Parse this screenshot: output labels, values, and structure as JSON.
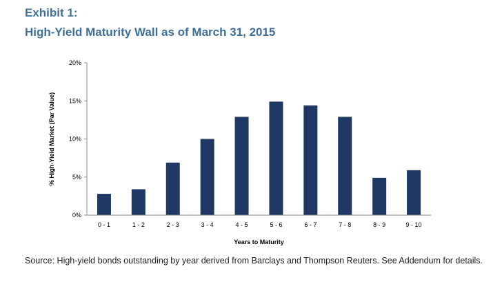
{
  "exhibit_label": "Exhibit 1:",
  "title": "High-Yield Maturity Wall as of March 31, 2015",
  "source_note": "Source: High-yield bonds outstanding by year derived from Barclays and Thompson Reuters. See Addendum for details.",
  "colors": {
    "bar": "#1f3864",
    "title": "#3f6f98"
  },
  "chart_data": {
    "type": "bar",
    "categories": [
      "0 - 1",
      "1 - 2",
      "2 - 3",
      "3 - 4",
      "4 - 5",
      "5 - 6",
      "6 - 7",
      "7 - 8",
      "8 - 9",
      "9 - 10"
    ],
    "values": [
      2.8,
      3.4,
      6.9,
      10.0,
      12.9,
      14.9,
      14.4,
      12.9,
      4.9,
      5.9
    ],
    "ylim": [
      0,
      20
    ],
    "yticks": [
      "0%",
      "5%",
      "10%",
      "15%",
      "20%"
    ],
    "ytick_values": [
      0,
      5,
      10,
      15,
      20
    ],
    "xlabel": "Years to Maturity",
    "ylabel": "% High-Yield Market (Par Value)",
    "grid": false,
    "legend": "none"
  }
}
